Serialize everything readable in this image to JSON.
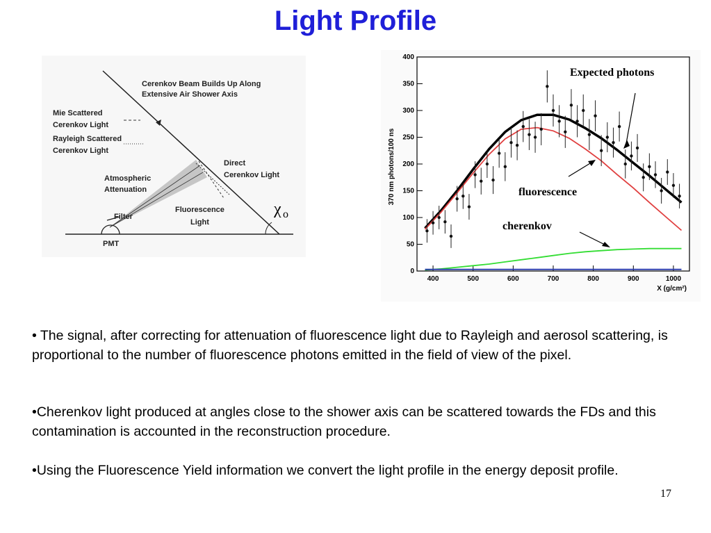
{
  "slide": {
    "title": "Light Profile",
    "page_number": "17"
  },
  "diagram": {
    "labels": {
      "beam": "Cerenkov Beam Builds Up Along",
      "beam2": "Extensive Air Shower Axis",
      "mie1": "Mie Scattered",
      "mie2": "Cerenkov Light",
      "ray1": "Rayleigh Scattered",
      "ray2": "Cerenkov Light",
      "atm1": "Atmospheric",
      "atm2": "Attenuation",
      "direct1": "Direct",
      "direct2": "Cerenkov Light",
      "fluo1": "Fluorescence",
      "fluo2": "Light",
      "filter": "Filter",
      "pmt": "PMT",
      "chi": "χ",
      "chi_sub": "o"
    }
  },
  "annotations": {
    "expected": "Expected photons",
    "fluorescence": "fluorescence",
    "cherenkov": "cherenkov"
  },
  "chart_data": {
    "type": "line",
    "ylabel": "370 nm photons/100 ns",
    "xlabel": "X (g/cm²)",
    "xlim": [
      360,
      1040
    ],
    "ylim": [
      0,
      400
    ],
    "x_ticks": [
      400,
      500,
      600,
      700,
      800,
      900,
      1000
    ],
    "y_ticks": [
      0,
      50,
      100,
      150,
      200,
      250,
      300,
      350,
      400
    ],
    "series": [
      {
        "name": "Expected photons",
        "color": "#000000",
        "x": [
          380,
          420,
          460,
          500,
          540,
          580,
          620,
          660,
          700,
          740,
          780,
          820,
          860,
          900,
          940,
          980,
          1020
        ],
        "y": [
          80,
          113,
          150,
          190,
          228,
          260,
          282,
          292,
          292,
          283,
          267,
          248,
          226,
          202,
          178,
          153,
          128
        ]
      },
      {
        "name": "fluorescence",
        "color": "#e04040",
        "x": [
          380,
          420,
          460,
          500,
          540,
          580,
          620,
          660,
          700,
          740,
          780,
          820,
          860,
          900,
          940,
          980,
          1020
        ],
        "y": [
          78,
          110,
          146,
          183,
          218,
          247,
          265,
          268,
          262,
          248,
          228,
          206,
          180,
          155,
          128,
          102,
          76
        ]
      },
      {
        "name": "cherenkov",
        "color": "#33dd33",
        "x": [
          380,
          420,
          460,
          500,
          540,
          580,
          620,
          660,
          700,
          740,
          780,
          820,
          860,
          900,
          940,
          980,
          1020
        ],
        "y": [
          2,
          4,
          7,
          10,
          13,
          17,
          21,
          25,
          29,
          33,
          36,
          38,
          40,
          41,
          42,
          42,
          42
        ]
      },
      {
        "name": "",
        "color": "#2233aa",
        "x": [
          380,
          1020
        ],
        "y": [
          3,
          3
        ]
      }
    ],
    "points": {
      "x": [
        385,
        400,
        415,
        430,
        445,
        460,
        475,
        490,
        505,
        520,
        535,
        550,
        565,
        580,
        595,
        610,
        625,
        640,
        655,
        670,
        685,
        700,
        715,
        730,
        745,
        760,
        775,
        790,
        805,
        820,
        835,
        850,
        865,
        880,
        895,
        910,
        925,
        940,
        955,
        970,
        985,
        1000,
        1015
      ],
      "y": [
        75,
        90,
        100,
        92,
        65,
        135,
        140,
        120,
        180,
        168,
        200,
        170,
        220,
        195,
        240,
        235,
        270,
        255,
        250,
        265,
        345,
        300,
        280,
        260,
        310,
        280,
        300,
        255,
        290,
        225,
        250,
        240,
        270,
        200,
        215,
        230,
        175,
        195,
        180,
        150,
        185,
        160,
        140
      ],
      "err": [
        22,
        22,
        22,
        22,
        22,
        24,
        24,
        24,
        25,
        25,
        26,
        26,
        27,
        27,
        28,
        28,
        29,
        29,
        29,
        30,
        30,
        30,
        30,
        30,
        30,
        30,
        30,
        29,
        29,
        29,
        28,
        28,
        28,
        27,
        27,
        26,
        26,
        25,
        25,
        24,
        24,
        23,
        23
      ]
    }
  },
  "bullets": [
    "• The signal, after correcting for attenuation of fluorescence light due to Rayleigh and aerosol scattering, is proportional to the number of fluorescence photons emitted in the field of view of the pixel.",
    "•Cherenkov light produced at angles close to the shower axis can be scattered towards the FDs and this contamination is accounted in the reconstruction procedure.",
    "•Using the Fluorescence Yield information we convert the light profile in the energy deposit profile."
  ]
}
